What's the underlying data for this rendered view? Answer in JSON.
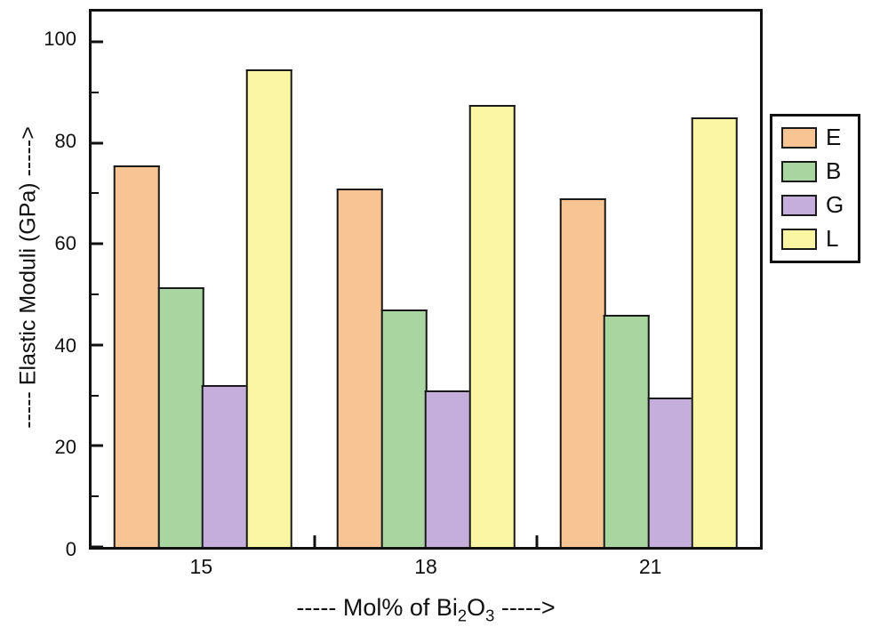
{
  "chart_data": {
    "type": "bar",
    "title": "",
    "categories": [
      "15",
      "18",
      "21"
    ],
    "series": [
      {
        "name": "E",
        "color": "#F8C493",
        "values": [
          75.5,
          71,
          69
        ]
      },
      {
        "name": "B",
        "color": "#A8D5A0",
        "values": [
          51.5,
          47,
          46
        ]
      },
      {
        "name": "G",
        "color": "#C5AEDC",
        "values": [
          32,
          31,
          29.5
        ]
      },
      {
        "name": "L",
        "color": "#FBF6A3",
        "values": [
          94.5,
          87.5,
          85
        ]
      }
    ],
    "xlabel": "----- Mol% of Bi2O3 ----->",
    "ylabel": "----- Elastic Moduli (GPa) ----->",
    "ylim": [
      0,
      106
    ],
    "yticks": [
      0,
      20,
      40,
      60,
      80,
      100
    ],
    "yminorticks": [
      10,
      30,
      50,
      70,
      90
    ],
    "grid": false,
    "legend_position": "right-outside"
  },
  "xlabel_parts": {
    "prefix": "----- Mol% of Bi",
    "sub_b": "2",
    "oxygen": "O",
    "sub_o": "3",
    "suffix": " ----->"
  },
  "colors": {
    "axis": "#111111",
    "bar_border": "#1a1a1a",
    "background": "#ffffff"
  }
}
